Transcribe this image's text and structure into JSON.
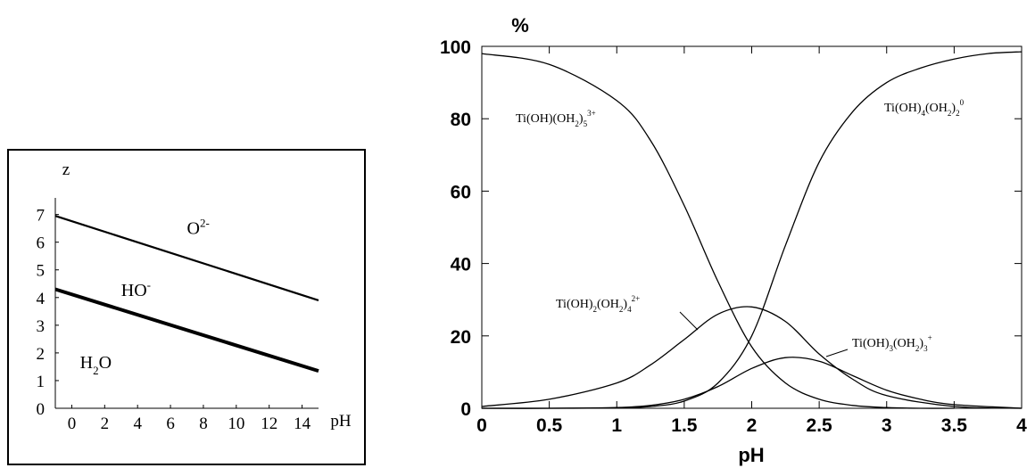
{
  "chart_data": [
    {
      "type": "line",
      "xlabel": "pH",
      "ylabel": "z",
      "xlim": [
        -1,
        15
      ],
      "ylim": [
        0,
        7.6
      ],
      "x_ticks": [
        "0",
        "2",
        "4",
        "6",
        "8",
        "10",
        "12",
        "14"
      ],
      "x_tick_values": [
        0,
        2,
        4,
        6,
        8,
        10,
        12,
        14
      ],
      "y_ticks": [
        "0",
        "1",
        "2",
        "3",
        "4",
        "5",
        "6",
        "7"
      ],
      "y_tick_values": [
        0,
        1,
        2,
        3,
        4,
        5,
        6,
        7
      ],
      "grid": false,
      "series": [
        {
          "x": [
            -1,
            15
          ],
          "y": [
            6.95,
            3.9
          ],
          "style": "thin"
        },
        {
          "x": [
            -1,
            15
          ],
          "y": [
            4.3,
            1.35
          ],
          "style": "thick"
        }
      ],
      "region_labels": [
        {
          "base": "O",
          "sup": "2-",
          "x": 7.0,
          "y": 6.3
        },
        {
          "base": "HO",
          "sup": "-",
          "x": 3.0,
          "y": 4.05
        },
        {
          "base": "H",
          "sub": "2",
          "rest": "O",
          "x": 0.5,
          "y": 1.45
        }
      ]
    },
    {
      "type": "line",
      "xlabel": "pH",
      "ylabel": "%",
      "xlim": [
        0,
        4
      ],
      "ylim": [
        0,
        100
      ],
      "x_ticks": [
        "0",
        "0.5",
        "1",
        "1.5",
        "2",
        "2.5",
        "3",
        "3.5",
        "4"
      ],
      "x_tick_values": [
        0,
        0.5,
        1,
        1.5,
        2,
        2.5,
        3,
        3.5,
        4
      ],
      "y_ticks": [
        "0",
        "20",
        "40",
        "60",
        "80",
        "100"
      ],
      "y_tick_values": [
        0,
        20,
        40,
        60,
        80,
        100
      ],
      "grid": false,
      "series": [
        {
          "name": "Ti(OH)(OH2)5 3+",
          "x": [
            0,
            0.5,
            1,
            1.25,
            1.5,
            1.75,
            2,
            2.25,
            2.5,
            2.75,
            3,
            3.25,
            3.5
          ],
          "y": [
            98,
            95,
            85,
            74,
            56,
            35,
            17,
            7,
            2.5,
            0.8,
            0.2,
            0,
            0
          ]
        },
        {
          "name": "Ti(OH)2(OH2)4 2+",
          "x": [
            0,
            0.5,
            1,
            1.25,
            1.5,
            1.75,
            2,
            2.25,
            2.5,
            2.75,
            3,
            3.5,
            4
          ],
          "y": [
            0.5,
            2.5,
            7,
            12,
            19,
            26,
            28,
            24,
            15,
            8,
            3.5,
            0.5,
            0
          ]
        },
        {
          "name": "Ti(OH)3(OH2)3 +",
          "x": [
            0,
            0.5,
            1,
            1.25,
            1.5,
            1.75,
            2,
            2.25,
            2.5,
            2.75,
            3,
            3.25,
            3.5,
            4
          ],
          "y": [
            0,
            0,
            0.2,
            0.8,
            2.5,
            6,
            11,
            14,
            13,
            9,
            5,
            2.5,
            1,
            0
          ]
        },
        {
          "name": "Ti(OH)4(OH2)2 0",
          "x": [
            0,
            0.5,
            1,
            1.25,
            1.5,
            1.75,
            2,
            2.25,
            2.5,
            2.75,
            3,
            3.25,
            3.5,
            3.75,
            4
          ],
          "y": [
            0,
            0,
            0.1,
            0.5,
            2,
            7,
            20,
            45,
            68,
            82,
            90,
            94,
            96.5,
            98,
            98.5
          ]
        }
      ],
      "labels": [
        {
          "base": "Ti(OH)(OH",
          "sub": "2",
          "mid": ")",
          "sub2": "5",
          "sup": "3+"
        },
        {
          "base": "Ti(OH)",
          "sub": "4",
          "mid": "(OH",
          "sub2": "2",
          "end": ")",
          "sub3": "2",
          "sup": "0"
        },
        {
          "base": "Ti(OH)",
          "sub": "2",
          "mid": "(OH",
          "sub2": "2",
          "end": ")",
          "sub3": "4",
          "sup": "2+"
        },
        {
          "base": "Ti(OH)",
          "sub": "3",
          "mid": "(OH",
          "sub2": "2",
          "end": ")",
          "sub3": "3",
          "sup": "+"
        }
      ]
    }
  ]
}
